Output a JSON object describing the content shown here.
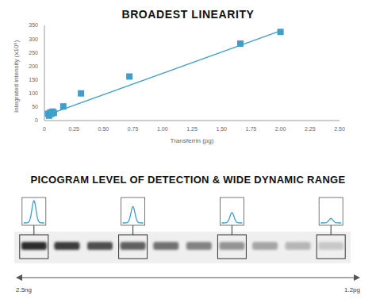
{
  "chart_data": {
    "type": "scatter",
    "title": "BROADEST LINEARITY",
    "x_label": "Transferrin (pg)",
    "y_label": "Integrated intensity (x10⁶)",
    "x": [
      0.03,
      0.04,
      0.05,
      0.06,
      0.07,
      0.08,
      0.16,
      0.31,
      0.72,
      1.66,
      2.0
    ],
    "values": [
      25,
      18,
      30,
      25,
      33,
      28,
      52,
      100,
      162,
      283,
      326
    ],
    "trendline": {
      "x": [
        0.02,
        2.0
      ],
      "values": [
        20,
        330
      ]
    },
    "color": "#3e9fc9",
    "marker": "square",
    "line_style": "solid",
    "xlim": [
      0,
      2.5
    ],
    "xticks": [
      0,
      0.25,
      {
        "value": 0.5,
        "label": "0.50"
      },
      0.75,
      {
        "value": 1,
        "label": "1.00"
      },
      1.25,
      {
        "value": 1.5,
        "label": "1.50"
      },
      1.75,
      {
        "value": 2,
        "label": "2.00"
      },
      2.25,
      {
        "value": 2.5,
        "label": "2.50"
      }
    ],
    "ylim": [
      0,
      350
    ],
    "yticks": [
      0,
      50,
      100,
      150,
      200,
      250,
      300,
      350
    ],
    "grid": false
  },
  "blot": {
    "title": "PICOGRAM LEVEL OF DETECTION & WIDE DYNAMIC RANGE",
    "lanes": 10,
    "profile_lanes": [
      1,
      4,
      7,
      10
    ],
    "range_start": "2.5ng",
    "range_end": "1.2pg"
  }
}
